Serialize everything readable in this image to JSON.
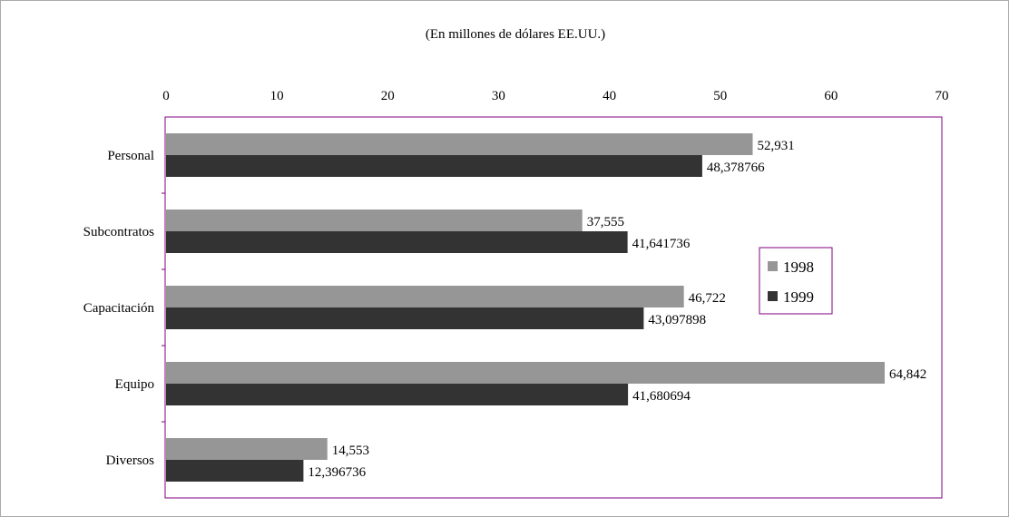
{
  "chart_data": {
    "type": "bar",
    "orientation": "horizontal",
    "subtitle": "(En millones de dólares EE.UU.)",
    "categories": [
      "Personal",
      "Subcontratos",
      "Capacitación",
      "Equipo",
      "Diversos"
    ],
    "series": [
      {
        "name": "1998",
        "color": "#969696",
        "values": [
          52.931,
          37.555,
          46.722,
          64.842,
          14.553
        ],
        "labels": [
          "52,931",
          "37,555",
          "46,722",
          "64,842",
          "14,553"
        ]
      },
      {
        "name": "1999",
        "color": "#333333",
        "values": [
          48.378766,
          41.641736,
          43.097898,
          41.680694,
          12.396736
        ],
        "labels": [
          "48,378766",
          "41,641736",
          "43,097898",
          "41,680694",
          "12,396736"
        ]
      }
    ],
    "xlim": [
      0,
      70
    ],
    "xticks": [
      0,
      10,
      20,
      30,
      40,
      50,
      60,
      70
    ],
    "x_axis_position": "top",
    "grid": false,
    "legend_position": "right",
    "frame_color": "#800080",
    "outer_border_color": "#aaaaaa"
  }
}
